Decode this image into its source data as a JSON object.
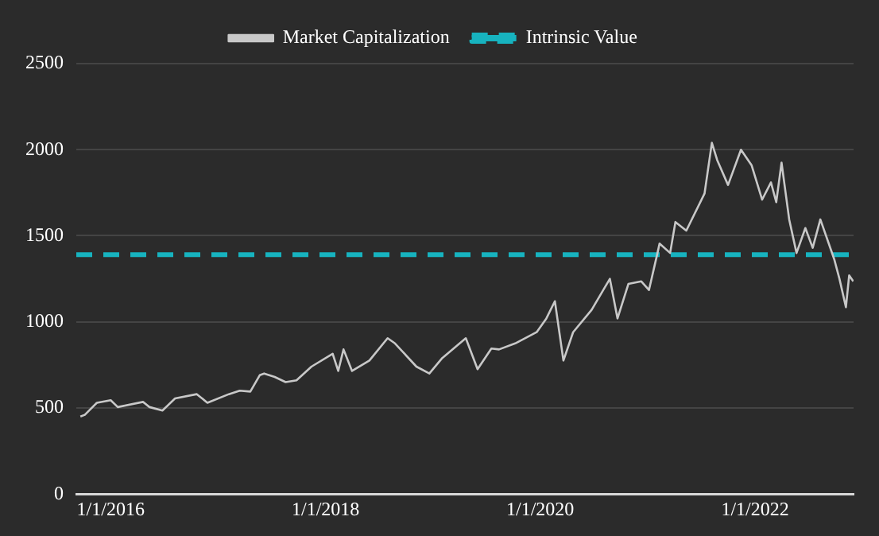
{
  "chart_data": {
    "type": "line",
    "legend": "top",
    "grid": "y",
    "marker": "none",
    "xlim": [
      "2015-09-06",
      "2022-12-02"
    ],
    "xticks": [
      {
        "value": "2016-01-01",
        "label": "1/1/2016"
      },
      {
        "value": "2018-01-01",
        "label": "1/1/2018"
      },
      {
        "value": "2020-01-01",
        "label": "1/1/2020"
      },
      {
        "value": "2022-01-01",
        "label": "1/1/2022"
      }
    ],
    "ylim": [
      0,
      2500
    ],
    "yticks": [
      0,
      500,
      1000,
      1500,
      2000,
      2500
    ],
    "series": [
      {
        "name": "Market Capitalization",
        "color": "#c8c8c8",
        "line_style": "solid",
        "x": [
          "2015-09-20",
          "2015-10-05",
          "2015-11-15",
          "2016-01-01",
          "2016-01-25",
          "2016-04-20",
          "2016-05-12",
          "2016-06-25",
          "2016-08-07",
          "2016-10-20",
          "2016-11-25",
          "2017-02-06",
          "2017-03-15",
          "2017-04-20",
          "2017-05-22",
          "2017-06-06",
          "2017-07-12",
          "2017-08-18",
          "2017-09-24",
          "2017-11-14",
          "2018-01-25",
          "2018-02-13",
          "2018-03-03",
          "2018-04-01",
          "2018-05-30",
          "2018-07-31",
          "2018-08-25",
          "2018-11-06",
          "2018-12-20",
          "2019-02-02",
          "2019-04-23",
          "2019-06-02",
          "2019-07-19",
          "2019-08-14",
          "2019-10-08",
          "2019-12-20",
          "2020-01-22",
          "2020-02-20",
          "2020-03-20",
          "2020-04-22",
          "2020-06-24",
          "2020-08-25",
          "2020-09-20",
          "2020-10-27",
          "2020-12-10",
          "2021-01-05",
          "2021-02-03",
          "2021-02-10",
          "2021-03-18",
          "2021-04-05",
          "2021-05-12",
          "2021-07-13",
          "2021-08-07",
          "2021-08-25",
          "2021-10-01",
          "2021-11-14",
          "2021-12-20",
          "2022-01-25",
          "2022-02-24",
          "2022-03-14",
          "2022-04-01",
          "2022-04-27",
          "2022-05-22",
          "2022-06-21",
          "2022-07-16",
          "2022-08-11",
          "2022-09-27",
          "2022-10-15",
          "2022-11-06",
          "2022-11-17",
          "2022-12-01"
        ],
        "values": [
          450,
          460,
          530,
          545,
          505,
          535,
          505,
          485,
          555,
          580,
          530,
          580,
          600,
          595,
          690,
          700,
          680,
          650,
          660,
          740,
          815,
          715,
          840,
          715,
          775,
          905,
          875,
          740,
          700,
          790,
          905,
          725,
          845,
          840,
          875,
          940,
          1020,
          1120,
          775,
          940,
          1070,
          1250,
          1020,
          1220,
          1235,
          1185,
          1400,
          1455,
          1400,
          1580,
          1530,
          1745,
          2040,
          1940,
          1795,
          2000,
          1910,
          1710,
          1810,
          1695,
          1925,
          1595,
          1400,
          1545,
          1430,
          1595,
          1365,
          1250,
          1085,
          1270,
          1235
        ]
      },
      {
        "name": "Intrinsic Value",
        "color": "#17b3bf",
        "line_style": "dashed",
        "x": [
          "2015-09-06",
          "2022-12-02"
        ],
        "values": [
          1390,
          1390
        ]
      }
    ]
  }
}
